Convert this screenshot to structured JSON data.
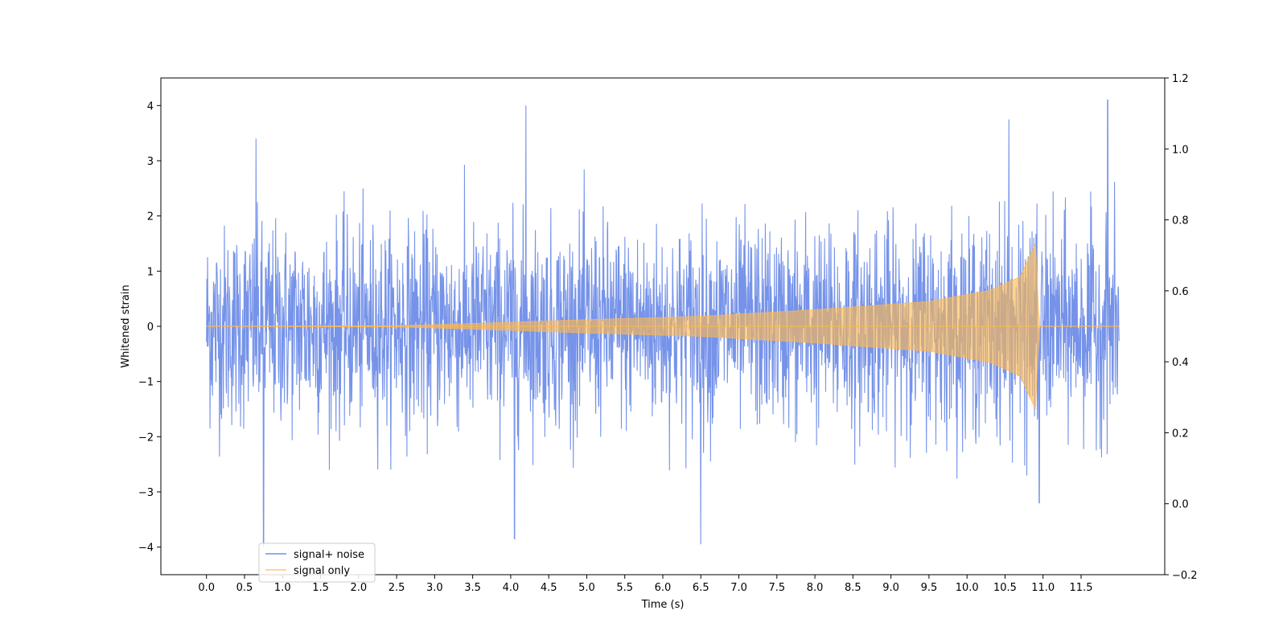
{
  "chart_data": {
    "type": "line",
    "title": "",
    "xlabel": "Time (s)",
    "ylabel": "Whitened strain",
    "y2label": "",
    "xlim": [
      -0.6,
      12.6
    ],
    "ylim": [
      -4.5,
      4.5
    ],
    "y2lim": [
      -0.2,
      1.2
    ],
    "x_ticks": [
      "0.0",
      "0.5",
      "1.0",
      "1.5",
      "2.0",
      "2.5",
      "3.0",
      "3.5",
      "4.0",
      "4.5",
      "5.0",
      "5.5",
      "6.0",
      "6.5",
      "7.0",
      "7.5",
      "8.0",
      "8.5",
      "9.0",
      "9.5",
      "10.0",
      "10.5",
      "11.0",
      "11.5"
    ],
    "y_ticks": [
      "−4",
      "−3",
      "−2",
      "−1",
      "0",
      "1",
      "2",
      "3",
      "4"
    ],
    "y2_ticks": [
      "−0.2",
      "0.0",
      "0.2",
      "0.4",
      "0.6",
      "0.8",
      "1.0",
      "1.2"
    ],
    "grid": false,
    "legend_position": "lower-left",
    "series": [
      {
        "name": "signal+ noise",
        "color": "#4169e1",
        "kind": "whitened noise plus injected chirp",
        "x_range": [
          0.0,
          12.0
        ],
        "typical_peak_range": [
          -2.2,
          2.8
        ],
        "extreme_peaks": [
          {
            "x": 0.65,
            "y": 3.4
          },
          {
            "x": 0.75,
            "y": -4.0
          },
          {
            "x": 4.05,
            "y": -3.85
          },
          {
            "x": 4.2,
            "y": 4.0
          },
          {
            "x": 6.5,
            "y": -3.95
          },
          {
            "x": 10.55,
            "y": 3.75
          },
          {
            "x": 10.95,
            "y": -3.2
          },
          {
            "x": 11.85,
            "y": 4.1
          }
        ]
      },
      {
        "name": "signal only",
        "color": "#ffb84d",
        "kind": "chirp",
        "amplitude_envelope": [
          {
            "x": 0.0,
            "y": 0.0
          },
          {
            "x": 2.5,
            "y": 0.01
          },
          {
            "x": 3.5,
            "y": 0.05
          },
          {
            "x": 5.0,
            "y": 0.12
          },
          {
            "x": 6.5,
            "y": 0.18
          },
          {
            "x": 8.0,
            "y": 0.3
          },
          {
            "x": 9.5,
            "y": 0.45
          },
          {
            "x": 10.3,
            "y": 0.65
          },
          {
            "x": 10.7,
            "y": 0.9
          },
          {
            "x": 10.9,
            "y": 1.5
          },
          {
            "x": 10.95,
            "y": 0.0
          },
          {
            "x": 12.0,
            "y": 0.0
          }
        ]
      }
    ]
  }
}
